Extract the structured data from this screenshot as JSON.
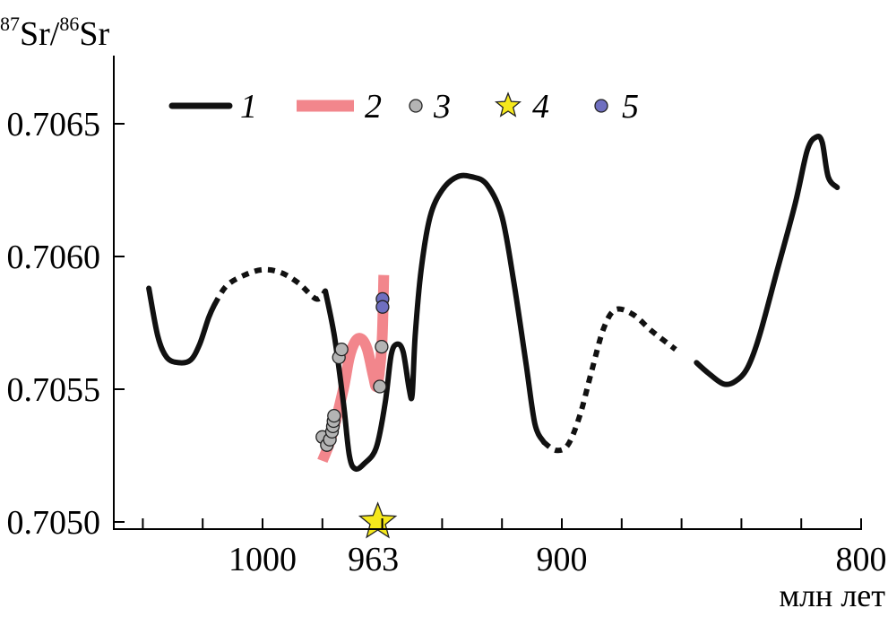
{
  "chart_data": {
    "type": "line",
    "title": "",
    "ylabel": {
      "base1": "Sr/",
      "sup1": "87",
      "sup2": "86",
      "base2": "Sr"
    },
    "xlabel": "млн лет",
    "xlim": [
      1050,
      800
    ],
    "ylim": [
      0.705,
      0.7068
    ],
    "x_ticks": [
      1040,
      1020,
      1000,
      980,
      960,
      940,
      920,
      900,
      880,
      860,
      840,
      820,
      800
    ],
    "x_tick_labels": [
      {
        "x": 1000,
        "label": "1000"
      },
      {
        "x": 963,
        "label": "963"
      },
      {
        "x": 900,
        "label": "900"
      },
      {
        "x": 800,
        "label": "800"
      }
    ],
    "y_tick_labels": [
      {
        "y": 0.705,
        "label": "0.7050"
      },
      {
        "y": 0.7055,
        "label": "0.7055"
      },
      {
        "y": 0.706,
        "label": "0.7060"
      },
      {
        "y": 0.7065,
        "label": "0.7065"
      }
    ],
    "legend": [
      {
        "key": "1",
        "label": "1",
        "kind": "black-line"
      },
      {
        "key": "2",
        "label": "2",
        "kind": "pink-band"
      },
      {
        "key": "3",
        "label": "3",
        "kind": "gray-dot"
      },
      {
        "key": "4",
        "label": "4",
        "kind": "star"
      },
      {
        "key": "5",
        "label": "5",
        "kind": "blue-dot"
      }
    ],
    "colors": {
      "curve": "#111111",
      "band": "#f2868c",
      "gray_dot": "#b4b4b4",
      "star": "#f5e81c",
      "blue_dot": "#6f6fc0"
    },
    "curve_segments": [
      {
        "style": "solid",
        "points": [
          [
            1038,
            0.70588
          ],
          [
            1035,
            0.7057
          ],
          [
            1032,
            0.70562
          ],
          [
            1028,
            0.7056
          ],
          [
            1024,
            0.70561
          ],
          [
            1021,
            0.70567
          ],
          [
            1018,
            0.70577
          ],
          [
            1016,
            0.70582
          ]
        ]
      },
      {
        "style": "dotted",
        "points": [
          [
            1016,
            0.70582
          ],
          [
            1012,
            0.70589
          ],
          [
            1006,
            0.70593
          ],
          [
            1000,
            0.70595
          ],
          [
            994,
            0.70594
          ],
          [
            988,
            0.7059
          ],
          [
            982,
            0.70584
          ],
          [
            979,
            0.70587
          ]
        ]
      },
      {
        "style": "solid",
        "points": [
          [
            979,
            0.70587
          ],
          [
            976,
            0.7057
          ],
          [
            973,
            0.70545
          ],
          [
            971,
            0.70525
          ],
          [
            969,
            0.7052
          ],
          [
            966,
            0.70522
          ],
          [
            962,
            0.70528
          ],
          [
            959,
            0.70545
          ],
          [
            957,
            0.70563
          ],
          [
            955,
            0.70567
          ],
          [
            953,
            0.70564
          ],
          [
            951,
            0.7055
          ],
          [
            950,
            0.70548
          ],
          [
            949,
            0.7057
          ],
          [
            947,
            0.70595
          ],
          [
            944,
            0.70615
          ],
          [
            940,
            0.70625
          ],
          [
            935,
            0.7063
          ],
          [
            930,
            0.7063
          ],
          [
            925,
            0.70627
          ],
          [
            920,
            0.70615
          ],
          [
            916,
            0.7059
          ],
          [
            912,
            0.7056
          ],
          [
            909,
            0.70537
          ],
          [
            906,
            0.7053
          ]
        ]
      },
      {
        "style": "dotted",
        "points": [
          [
            906,
            0.7053
          ],
          [
            902,
            0.70527
          ],
          [
            898,
            0.70529
          ],
          [
            894,
            0.7054
          ],
          [
            890,
            0.70557
          ],
          [
            886,
            0.70573
          ],
          [
            882,
            0.7058
          ],
          [
            876,
            0.70578
          ],
          [
            870,
            0.70572
          ],
          [
            862,
            0.70565
          ]
        ]
      },
      {
        "style": "solid",
        "points": [
          [
            855,
            0.7056
          ],
          [
            851,
            0.70556
          ],
          [
            846,
            0.70552
          ],
          [
            842,
            0.70553
          ],
          [
            838,
            0.70558
          ],
          [
            834,
            0.7057
          ],
          [
            828,
            0.70595
          ],
          [
            822,
            0.7062
          ],
          [
            818,
            0.7064
          ],
          [
            815,
            0.70645
          ],
          [
            813,
            0.70643
          ],
          [
            811,
            0.7063
          ],
          [
            808,
            0.70626
          ]
        ]
      }
    ],
    "band_points": [
      [
        980,
        0.70523
      ],
      [
        977,
        0.70532
      ],
      [
        973,
        0.7055
      ],
      [
        971,
        0.70562
      ],
      [
        969,
        0.70568
      ],
      [
        967,
        0.70569
      ],
      [
        965,
        0.70565
      ],
      [
        963,
        0.70555
      ],
      [
        962,
        0.70551
      ],
      [
        961,
        0.70556
      ],
      [
        960,
        0.7057
      ],
      [
        959.5,
        0.70593
      ]
    ],
    "gray_dots": [
      [
        980,
        0.70532
      ],
      [
        978.5,
        0.70529
      ],
      [
        977.5,
        0.70531
      ],
      [
        976.8,
        0.70534
      ],
      [
        976.5,
        0.70536
      ],
      [
        976.3,
        0.70538
      ],
      [
        976.1,
        0.7054
      ],
      [
        974.5,
        0.70562
      ],
      [
        973.6,
        0.70565
      ],
      [
        960.8,
        0.70551
      ],
      [
        960.2,
        0.70566
      ]
    ],
    "star_points": [
      [
        961.5,
        0.705
      ]
    ],
    "blue_dots": [
      [
        959.9,
        0.70584
      ],
      [
        959.9,
        0.70581
      ]
    ]
  }
}
